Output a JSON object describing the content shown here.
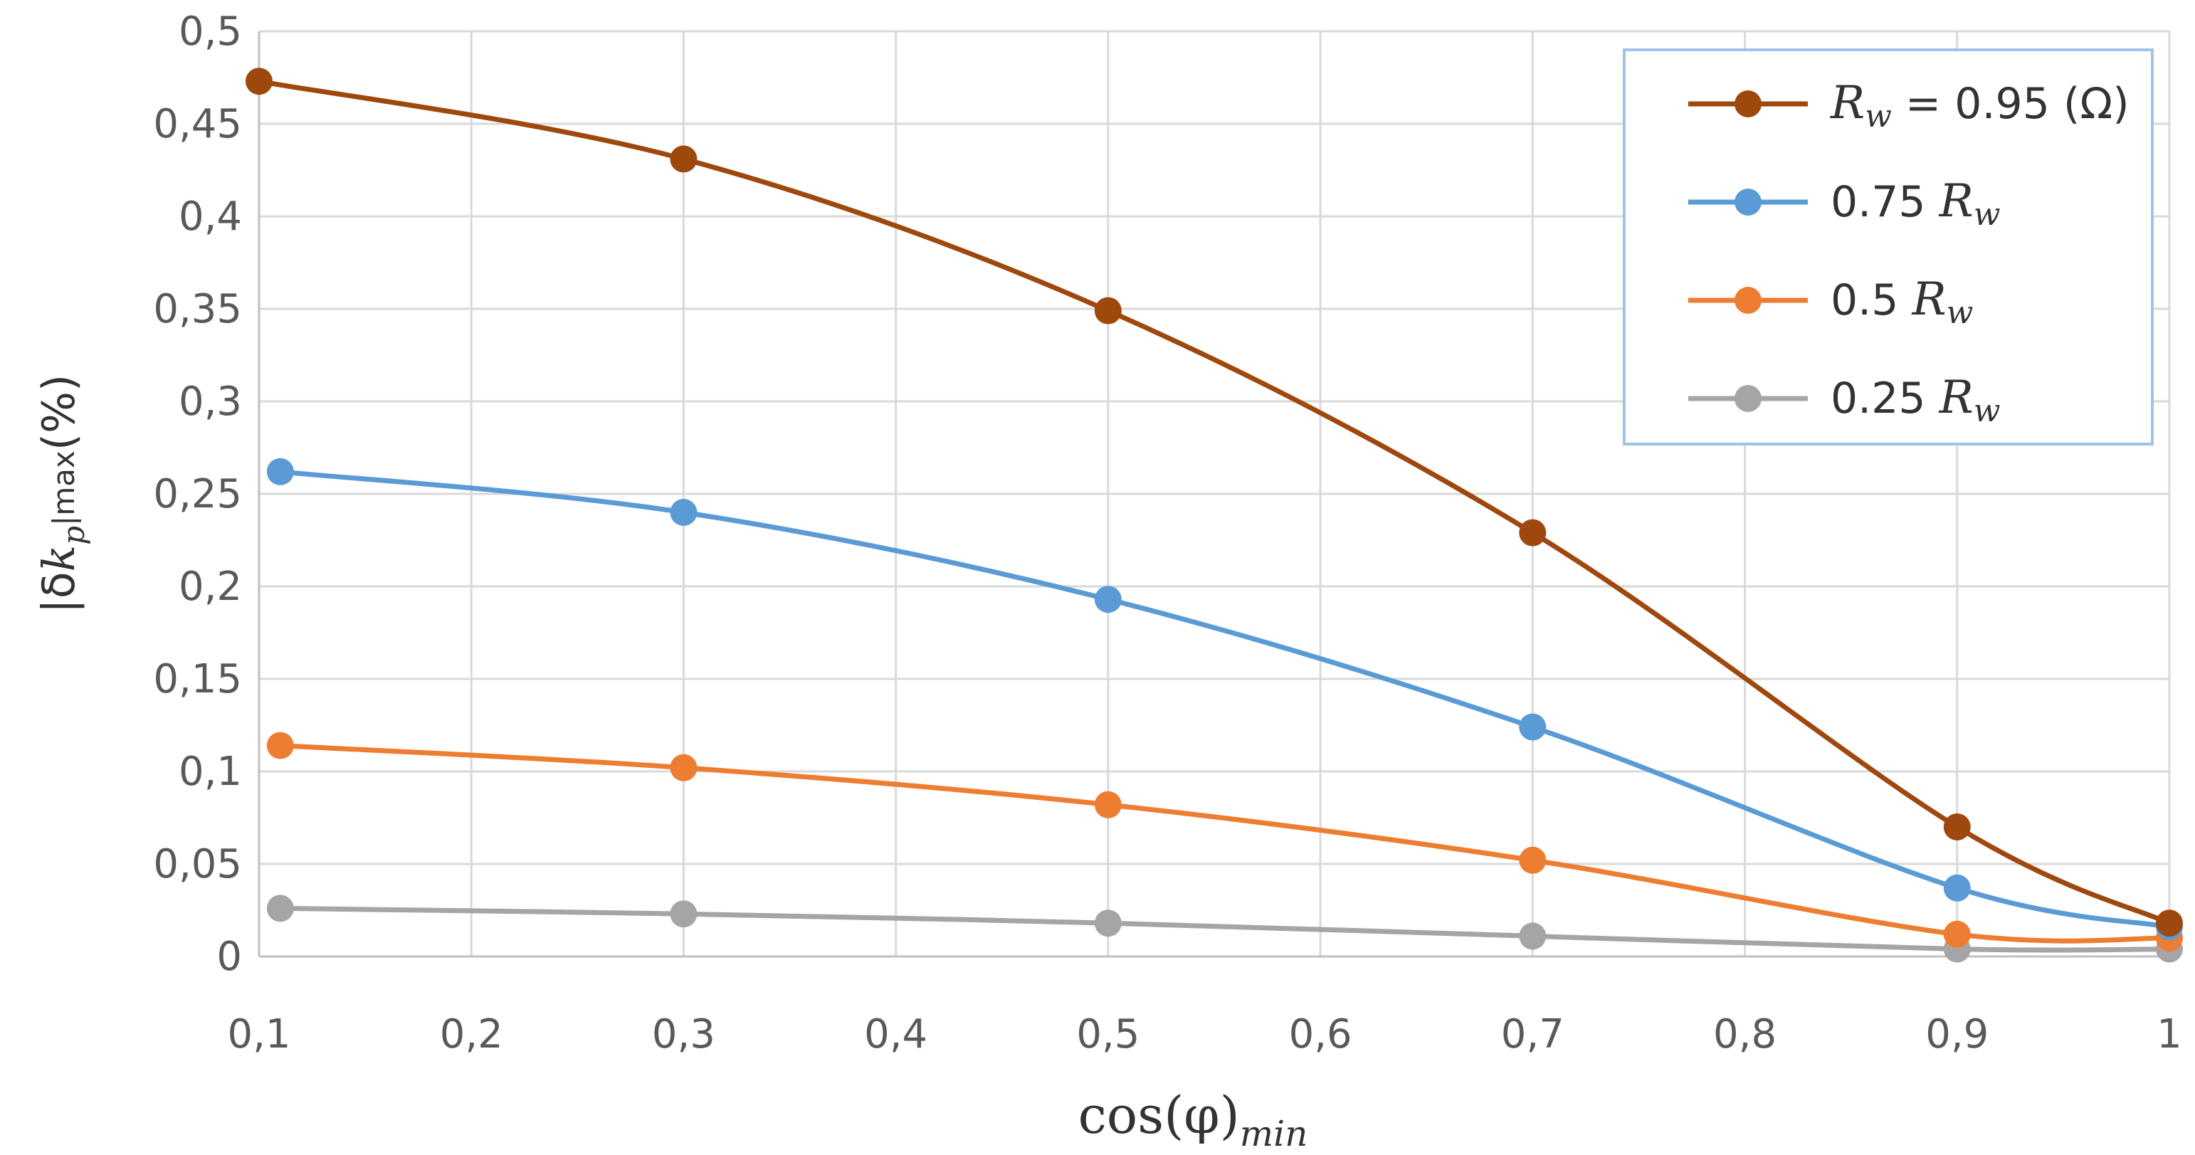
{
  "chart_data": {
    "type": "line",
    "title": "",
    "xlabel": "cos(φ)_min",
    "xlabel_main": "cos(φ)",
    "xlabel_sub": "min",
    "ylabel": "|δk_p|max (%)",
    "ylabel_main": "|δ",
    "ylabel_k": "k",
    "ylabel_p": "p",
    "ylabel_max": "|max",
    "ylabel_unit": "(%)",
    "xlim": [
      0.1,
      1.0
    ],
    "ylim": [
      0,
      0.5
    ],
    "x_ticks": [
      0.1,
      0.2,
      0.3,
      0.4,
      0.5,
      0.6,
      0.7,
      0.8,
      0.9,
      1.0
    ],
    "x_tick_labels": [
      "0,1",
      "0,2",
      "0,3",
      "0,4",
      "0,5",
      "0,6",
      "0,7",
      "0,8",
      "0,9",
      "1"
    ],
    "y_ticks": [
      0,
      0.05,
      0.1,
      0.15,
      0.2,
      0.25,
      0.3,
      0.35,
      0.4,
      0.45,
      0.5
    ],
    "y_tick_labels": [
      "0",
      "0,05",
      "0,1",
      "0,15",
      "0,2",
      "0,25",
      "0,3",
      "0,35",
      "0,4",
      "0,45",
      "0,5"
    ],
    "grid": true,
    "legend_position": "top-right",
    "series": [
      {
        "name": "R_w = 0.95 (Ω)",
        "legend_var": "R",
        "legend_sub": "w",
        "legend_rest": " = 0.95 (Ω)",
        "legend_prefix": "",
        "color": "#9E480E",
        "x": [
          0.1,
          0.3,
          0.5,
          0.7,
          0.9,
          1.0
        ],
        "y": [
          0.473,
          0.431,
          0.349,
          0.229,
          0.07,
          0.018
        ]
      },
      {
        "name": "0.75 R_w",
        "legend_prefix": "0.75 ",
        "legend_var": "R",
        "legend_sub": "w",
        "legend_rest": "",
        "color": "#5B9BD5",
        "x": [
          0.11,
          0.3,
          0.5,
          0.7,
          0.9,
          1.0
        ],
        "y": [
          0.262,
          0.24,
          0.193,
          0.124,
          0.037,
          0.016
        ]
      },
      {
        "name": "0.5 R_w",
        "legend_prefix": "0.5 ",
        "legend_var": "R",
        "legend_sub": "w",
        "legend_rest": "",
        "color": "#ED7D31",
        "x": [
          0.11,
          0.3,
          0.5,
          0.7,
          0.9,
          1.0
        ],
        "y": [
          0.114,
          0.102,
          0.082,
          0.052,
          0.012,
          0.01
        ]
      },
      {
        "name": "0.25 R_w",
        "legend_prefix": "0.25 ",
        "legend_var": "R",
        "legend_sub": "w",
        "legend_rest": "",
        "color": "#A5A5A5",
        "x": [
          0.11,
          0.3,
          0.5,
          0.7,
          0.9,
          1.0
        ],
        "y": [
          0.026,
          0.023,
          0.018,
          0.011,
          0.004,
          0.004
        ]
      }
    ]
  }
}
